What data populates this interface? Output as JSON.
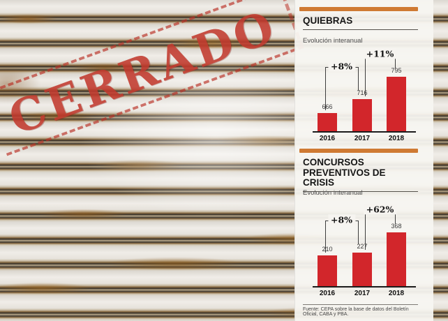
{
  "stamp": {
    "text": "CERRADO",
    "color": "#c23a2e"
  },
  "panel": {
    "accent_color": "#cf7a33",
    "footer": "Fuente: CEPA sobre la base de datos del Boletín Oficial, CABA y PBA."
  },
  "chart_data": [
    {
      "type": "bar",
      "title": "QUIEBRAS",
      "subtitle": "Evolución interanual",
      "categories": [
        "2016",
        "2017",
        "2018"
      ],
      "values": [
        666,
        716,
        795
      ],
      "ylim": [
        600,
        800
      ],
      "bar_color": "#d2262b",
      "grid": false,
      "annotations": [
        {
          "label": "+8%",
          "from": 0,
          "to": 1
        },
        {
          "label": "+11%",
          "from": 1,
          "to": 2
        }
      ]
    },
    {
      "type": "bar",
      "title": "CONCURSOS PREVENTIVOS DE CRISIS",
      "subtitle": "Evolución interanual",
      "categories": [
        "2016",
        "2017",
        "2018"
      ],
      "values": [
        210,
        227,
        368
      ],
      "ylim": [
        0,
        380
      ],
      "bar_color": "#d2262b",
      "grid": false,
      "annotations": [
        {
          "label": "+8%",
          "from": 0,
          "to": 1
        },
        {
          "label": "+62%",
          "from": 1,
          "to": 2
        }
      ]
    }
  ]
}
